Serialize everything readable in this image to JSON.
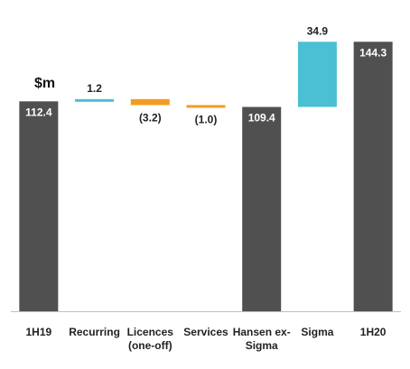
{
  "chart_data": {
    "type": "bar",
    "subtype": "waterfall",
    "unit_label": "$m",
    "ylim": [
      0,
      150
    ],
    "grid": false,
    "legend": "none",
    "categories": [
      "1H19",
      "Recurring",
      "Licences\n(one-off)",
      "Services",
      "Hansen ex-\nSigma",
      "Sigma",
      "1H20"
    ],
    "bars": [
      {
        "category": "1H19",
        "kind": "total",
        "base": 0,
        "value": 112.4,
        "label": "112.4",
        "color": "#505050"
      },
      {
        "category": "Recurring",
        "kind": "change",
        "base": 112.4,
        "value": 1.2,
        "label": "1.2",
        "color": "#4BC0D4"
      },
      {
        "category": "Licences (one-off)",
        "kind": "change",
        "base": 113.6,
        "value": -3.2,
        "label": "(3.2)",
        "color": "#F39C21"
      },
      {
        "category": "Services",
        "kind": "change",
        "base": 110.4,
        "value": -1.0,
        "label": "(1.0)",
        "color": "#F39C21"
      },
      {
        "category": "Hansen ex-Sigma",
        "kind": "total",
        "base": 0,
        "value": 109.4,
        "label": "109.4",
        "color": "#505050"
      },
      {
        "category": "Sigma",
        "kind": "change",
        "base": 109.4,
        "value": 34.9,
        "label": "34.9",
        "color": "#4BC0D4"
      },
      {
        "category": "1H20",
        "kind": "total",
        "base": 0,
        "value": 144.3,
        "label": "144.3",
        "color": "#505050"
      }
    ]
  }
}
